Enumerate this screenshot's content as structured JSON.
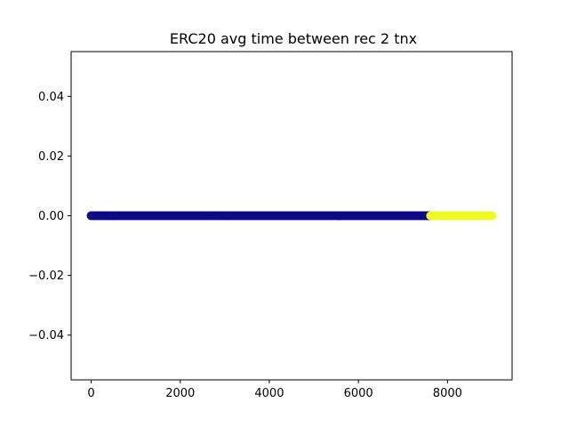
{
  "chart_data": {
    "type": "scatter",
    "title": "ERC20 avg time between rec 2 tnx",
    "xlabel": "",
    "ylabel": "",
    "xlim": [
      -450,
      9450
    ],
    "ylim": [
      -0.055,
      0.055
    ],
    "x_ticks": [
      0,
      2000,
      4000,
      6000,
      8000
    ],
    "x_tick_labels": [
      "0",
      "2000",
      "4000",
      "6000",
      "8000"
    ],
    "y_ticks": [
      0.04,
      0.02,
      0.0,
      -0.02,
      -0.04
    ],
    "y_tick_labels": [
      "0.04",
      "0.02",
      "0.00",
      "−0.02",
      "−0.04"
    ],
    "grid": false,
    "legend": "none",
    "series": [
      {
        "x_range": [
          0,
          7620
        ],
        "y": 0.0,
        "color": "#0d0887"
      },
      {
        "x_range": [
          7620,
          9000
        ],
        "y": 0.0,
        "color": "#f0f921"
      }
    ]
  }
}
